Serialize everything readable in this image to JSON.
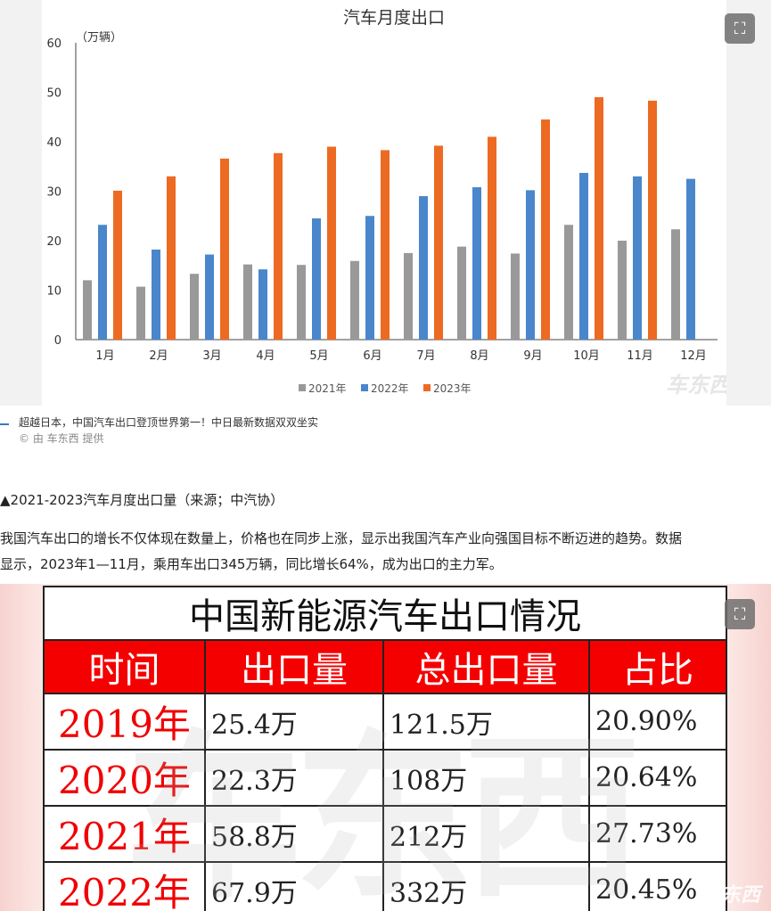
{
  "chart_data": {
    "type": "bar",
    "title": "汽车月度出口",
    "ylabel": "（万辆）",
    "ylim": [
      0,
      60
    ],
    "yticks": [
      0,
      10,
      20,
      30,
      40,
      50,
      60
    ],
    "categories": [
      "1月",
      "2月",
      "3月",
      "4月",
      "5月",
      "6月",
      "7月",
      "8月",
      "9月",
      "10月",
      "11月",
      "12月"
    ],
    "series": [
      {
        "name": "2021年",
        "color": "#999999",
        "values": [
          12,
          10.7,
          13.3,
          15.2,
          15.1,
          15.9,
          17.5,
          18.8,
          17.4,
          23.2,
          20,
          22.3
        ]
      },
      {
        "name": "2022年",
        "color": "#4a86cc",
        "values": [
          23.2,
          18.2,
          17.2,
          14.2,
          24.5,
          25,
          29,
          30.8,
          30.2,
          33.7,
          33,
          32.5
        ]
      },
      {
        "name": "2023年",
        "color": "#ed6a23",
        "values": [
          30.1,
          33,
          36.6,
          37.7,
          39,
          38.3,
          39.2,
          41,
          44.5,
          49,
          48.3,
          null
        ]
      }
    ],
    "legend_position": "bottom",
    "grid": false
  },
  "watermark_text": "车东西",
  "caption": {
    "title": "超越日本，中国汽车出口登顶世界第一！中日最新数据双双坐实",
    "credit": "© 由 车东西 提供"
  },
  "paragraph1": "▲2021-2023汽车月度出口量（来源；中汽协）",
  "paragraph2": {
    "line1": "我国汽车出口的增长不仅体现在数量上，价格也在同步上涨，显示出我国汽车产业向强国目标不断迈进的趋势。数据",
    "line2_part1": "显示，2023年1—11月，",
    "line2_part2": "乘用车出口345万辆，同比增长64%，成为出口的主力军。"
  },
  "table": {
    "title": "中国新能源汽车出口情况",
    "headers": [
      "时间",
      "出口量",
      "总出口量",
      "占比"
    ],
    "rows": [
      {
        "year": "2019年",
        "export": "25.4万",
        "total": "121.5万",
        "share": "20.90%"
      },
      {
        "year": "2020年",
        "export": "22.3万",
        "total": "108万",
        "share": "20.64%"
      },
      {
        "year": "2021年",
        "export": "58.8万",
        "total": "212万",
        "share": "27.73%"
      },
      {
        "year": "2022年",
        "export": "67.9万",
        "total": "332万",
        "share": "20.45%"
      }
    ]
  },
  "icons": {
    "expand": "expand-icon"
  }
}
